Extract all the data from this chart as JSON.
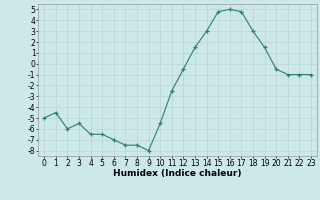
{
  "x": [
    0,
    1,
    2,
    3,
    4,
    5,
    6,
    7,
    8,
    9,
    10,
    11,
    12,
    13,
    14,
    15,
    16,
    17,
    18,
    19,
    20,
    21,
    22,
    23
  ],
  "y": [
    -5.0,
    -4.5,
    -6.0,
    -5.5,
    -6.5,
    -6.5,
    -7.0,
    -7.5,
    -7.5,
    -8.0,
    -5.5,
    -2.5,
    -0.5,
    1.5,
    3.0,
    4.8,
    5.0,
    4.8,
    3.0,
    1.5,
    -0.5,
    -1.0,
    -1.0,
    -1.0
  ],
  "xlabel": "Humidex (Indice chaleur)",
  "ylim": [
    -8.5,
    5.5
  ],
  "xlim": [
    -0.5,
    23.5
  ],
  "yticks": [
    -8,
    -7,
    -6,
    -5,
    -4,
    -3,
    -2,
    -1,
    0,
    1,
    2,
    3,
    4,
    5
  ],
  "xticks": [
    0,
    1,
    2,
    3,
    4,
    5,
    6,
    7,
    8,
    9,
    10,
    11,
    12,
    13,
    14,
    15,
    16,
    17,
    18,
    19,
    20,
    21,
    22,
    23
  ],
  "line_color": "#2d7f72",
  "bg_color": "#cce8e8",
  "grid_color": "#b8d4d4",
  "tick_fontsize": 5.5,
  "xlabel_fontsize": 6.5,
  "xlabel_fontweight": "bold"
}
